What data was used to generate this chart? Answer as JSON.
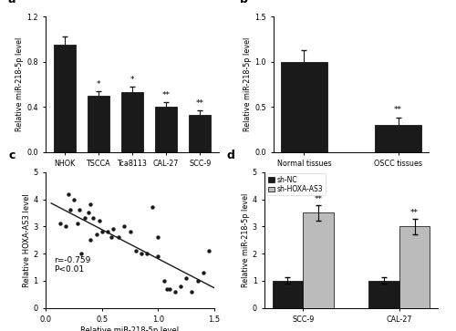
{
  "panel_a": {
    "categories": [
      "NHOK",
      "TSCCA",
      "Tca8113",
      "CAL-27",
      "SCC-9"
    ],
    "values": [
      0.95,
      0.5,
      0.53,
      0.4,
      0.33
    ],
    "errors": [
      0.07,
      0.04,
      0.05,
      0.04,
      0.04
    ],
    "significance": [
      "",
      "*",
      "*",
      "**",
      "**"
    ],
    "ylabel": "Relative miR-218-5p level",
    "ylim": [
      0,
      1.2
    ],
    "yticks": [
      0.0,
      0.4,
      0.8,
      1.2
    ],
    "label": "a"
  },
  "panel_b": {
    "categories": [
      "Normal tissues",
      "OSCC tissues"
    ],
    "values": [
      1.0,
      0.3
    ],
    "errors": [
      0.13,
      0.08
    ],
    "significance": [
      "",
      "**"
    ],
    "ylabel": "Relative miR-218-5p level",
    "ylim": [
      0,
      1.5
    ],
    "yticks": [
      0.0,
      0.5,
      1.0,
      1.5
    ],
    "label": "b"
  },
  "panel_c": {
    "scatter_x": [
      0.13,
      0.18,
      0.2,
      0.22,
      0.25,
      0.28,
      0.3,
      0.32,
      0.35,
      0.38,
      0.4,
      0.4,
      0.42,
      0.45,
      0.48,
      0.5,
      0.55,
      0.58,
      0.6,
      0.65,
      0.7,
      0.75,
      0.8,
      0.85,
      0.9,
      0.95,
      1.0,
      1.0,
      1.05,
      1.08,
      1.1,
      1.15,
      1.2,
      1.25,
      1.3,
      1.35,
      1.4,
      1.45
    ],
    "scatter_y": [
      3.1,
      3.0,
      4.2,
      3.6,
      4.0,
      3.1,
      3.6,
      2.0,
      3.3,
      3.5,
      3.8,
      2.5,
      3.3,
      2.7,
      3.2,
      2.8,
      2.8,
      2.6,
      2.9,
      2.6,
      3.0,
      2.8,
      2.1,
      2.0,
      2.0,
      3.7,
      1.9,
      2.6,
      1.0,
      0.7,
      0.7,
      0.6,
      0.8,
      1.1,
      0.6,
      1.0,
      1.3,
      2.1
    ],
    "xlabel": "Relative miR-218-5p level",
    "ylabel": "Relative HOXA-AS3 level",
    "xlim": [
      0.0,
      1.5
    ],
    "ylim": [
      0,
      5
    ],
    "xticks": [
      0.0,
      0.5,
      1.0,
      1.5
    ],
    "yticks": [
      0,
      1,
      2,
      3,
      4,
      5
    ],
    "annotation": "r=-0.759\nP<0.01",
    "label": "c"
  },
  "panel_d": {
    "categories": [
      "SCC-9",
      "CAL-27"
    ],
    "values_shNC": [
      1.0,
      1.0
    ],
    "values_shHOXA": [
      3.5,
      3.0
    ],
    "errors_shNC": [
      0.12,
      0.12
    ],
    "errors_shHOXA": [
      0.28,
      0.28
    ],
    "significance": [
      "**",
      "**"
    ],
    "ylabel": "Relative miR-218-5p level",
    "ylim": [
      0,
      5
    ],
    "yticks": [
      0,
      1,
      2,
      3,
      4,
      5
    ],
    "legend_shNC": "sh-NC",
    "legend_shHOXA": "sh-HOXA-AS3",
    "color_shNC": "#1a1a1a",
    "color_shHOXA": "#bbbbbb",
    "label": "d"
  },
  "bar_color": "#1a1a1a",
  "error_color": "#1a1a1a",
  "scatter_color": "#1a1a1a",
  "line_color": "#1a1a1a"
}
